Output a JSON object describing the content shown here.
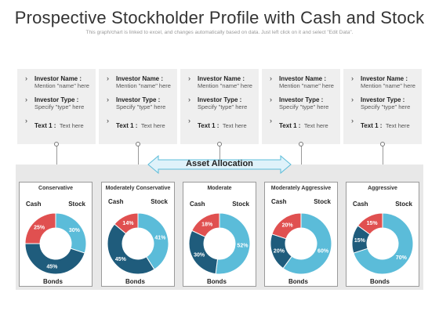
{
  "title": "Prospective Stockholder Profile with Cash and Stock",
  "subtitle": "This graph/chart is linked to excel, and changes automatically based on data. Just left click on it and select \"Edit Data\".",
  "cards": [
    {
      "name_label": "Investor Name :",
      "name_value": "Mention \"name\" here",
      "type_label": "Investor Type :",
      "type_value": "Specify \"type\" here",
      "text_label": "Text 1 :",
      "text_value": "Text here"
    },
    {
      "name_label": "Investor Name :",
      "name_value": "Mention \"name\" here",
      "type_label": "Investor Type :",
      "type_value": "Specify \"type\" here",
      "text_label": "Text 1 :",
      "text_value": "Text here"
    },
    {
      "name_label": "Investor Name :",
      "name_value": "Mention \"name\" here",
      "type_label": "Investor Type :",
      "type_value": "Specify \"type\" here",
      "text_label": "Text 1 :",
      "text_value": "Text here"
    },
    {
      "name_label": "Investor Name :",
      "name_value": "Mention \"name\" here",
      "type_label": "Investor Type :",
      "type_value": "Specify \"type\" here",
      "text_label": "Text 1 :",
      "text_value": "Text here"
    },
    {
      "name_label": "Investor Name :",
      "name_value": "Mention \"name\" here",
      "type_label": "Investor Type :",
      "type_value": "Specify \"type\" here",
      "text_label": "Text 1 :",
      "text_value": "Text here"
    }
  ],
  "banner": "Asset Allocation",
  "colors": {
    "cash": "#e05050",
    "stock": "#5bbcd9",
    "bonds": "#1f5c7c"
  },
  "chart_data": [
    {
      "type": "pie",
      "title": "Conservative",
      "categories": [
        "Cash",
        "Stock",
        "Bonds"
      ],
      "values": [
        25,
        30,
        45
      ]
    },
    {
      "type": "pie",
      "title": "Moderately Conservative",
      "categories": [
        "Cash",
        "Stock",
        "Bonds"
      ],
      "values": [
        14,
        41,
        45
      ]
    },
    {
      "type": "pie",
      "title": "Moderate",
      "categories": [
        "Cash",
        "Stock",
        "Bonds"
      ],
      "values": [
        18,
        52,
        30
      ]
    },
    {
      "type": "pie",
      "title": "Moderately Aggressive",
      "categories": [
        "Cash",
        "Stock",
        "Bonds"
      ],
      "values": [
        20,
        60,
        20
      ]
    },
    {
      "type": "pie",
      "title": "Aggressive",
      "categories": [
        "Cash",
        "Stock",
        "Bonds"
      ],
      "values": [
        15,
        70,
        15
      ]
    }
  ]
}
